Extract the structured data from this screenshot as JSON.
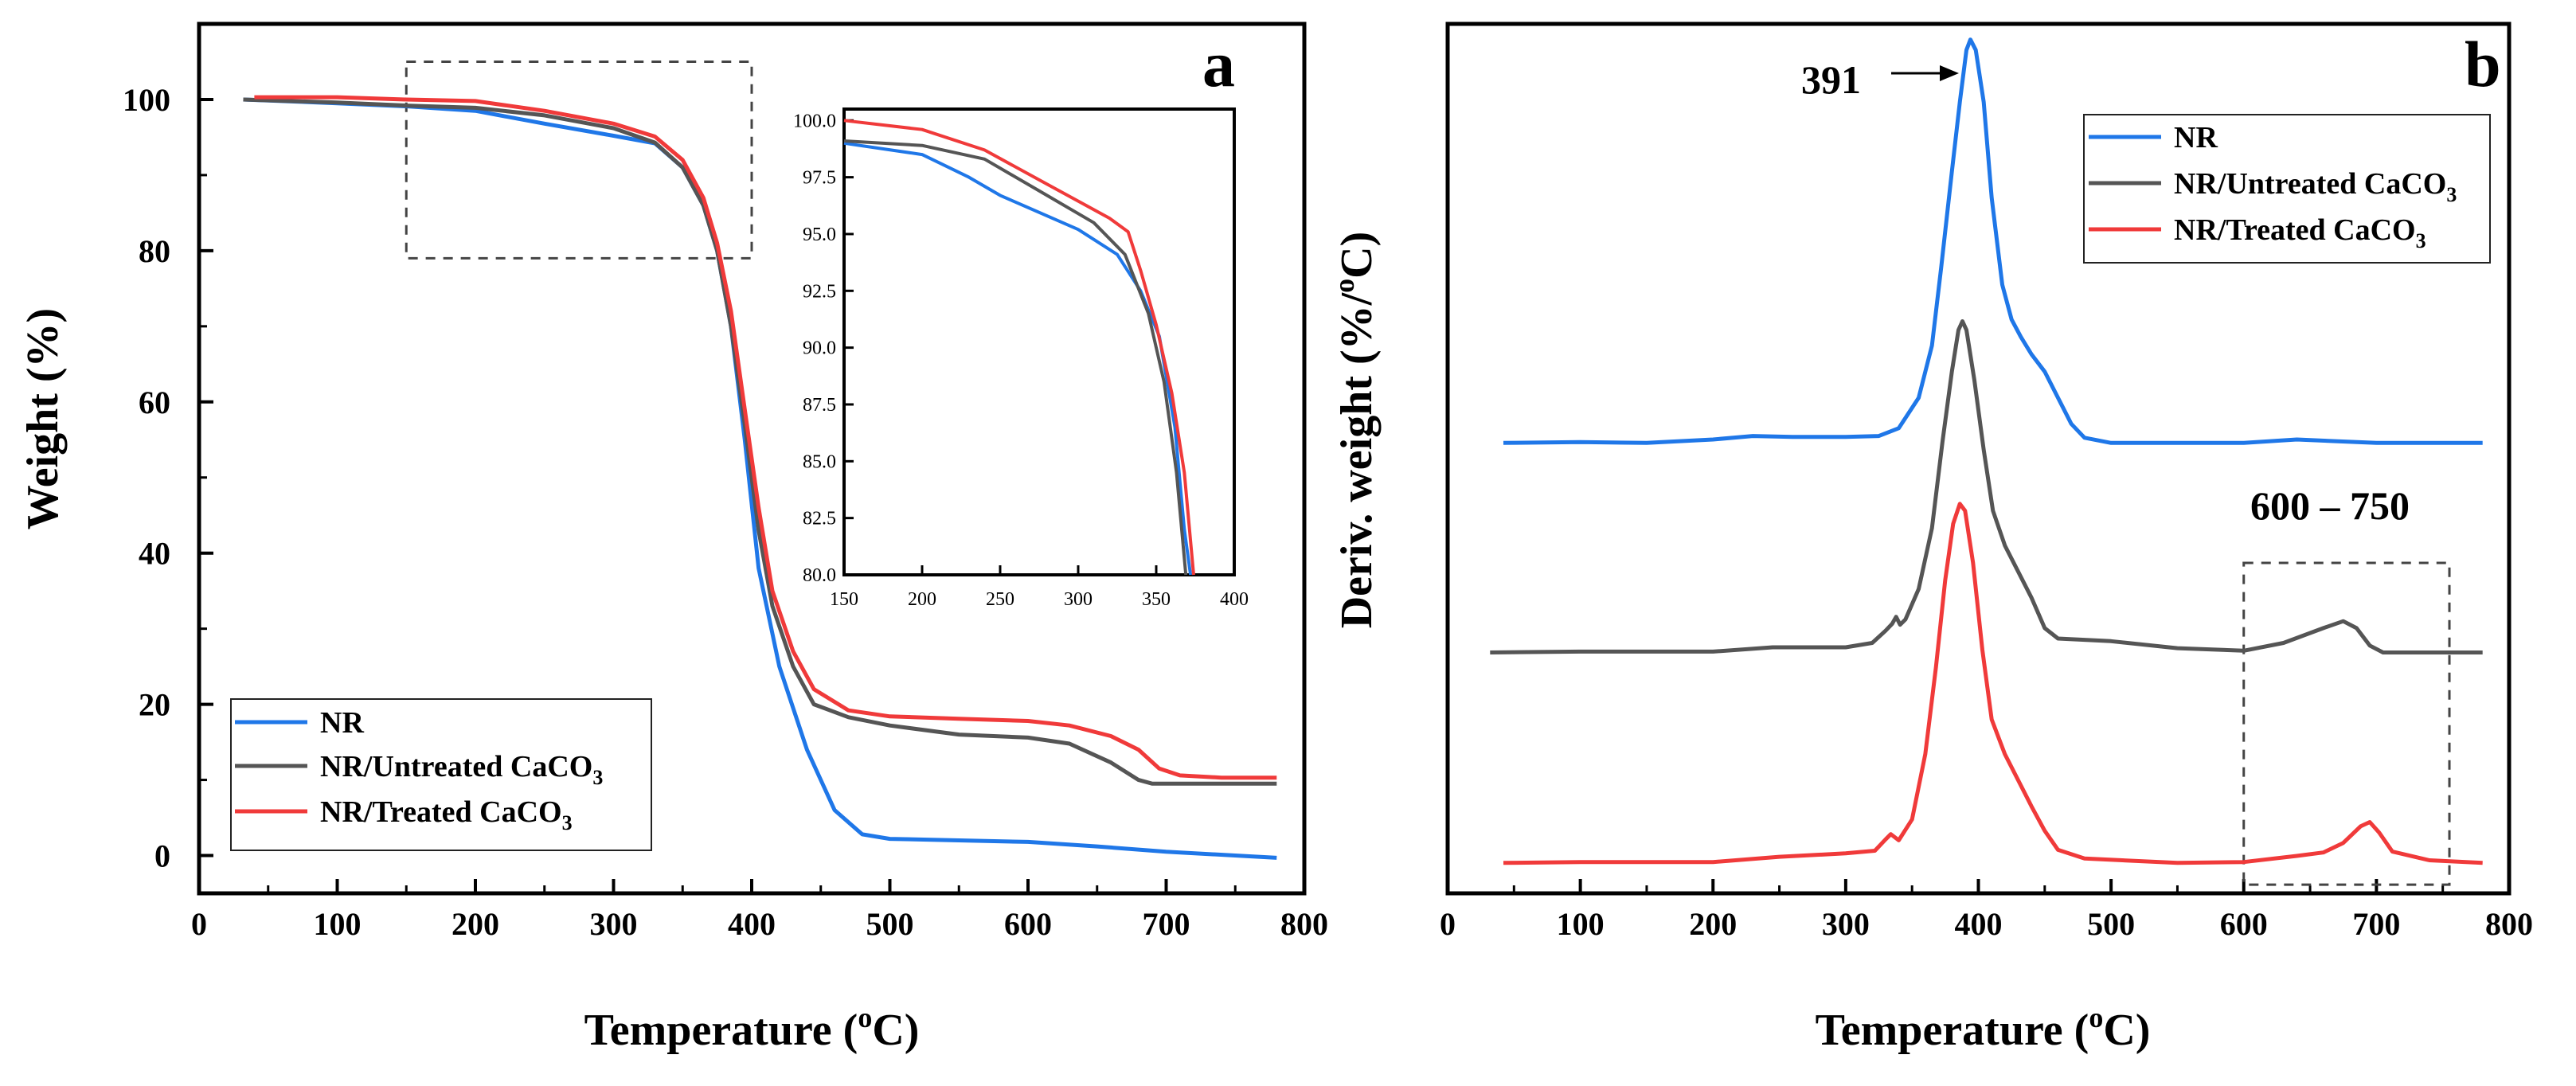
{
  "chart_data": [
    {
      "panel": "a",
      "type": "line",
      "xlabel": "Temperature (oC)",
      "xlabel_main": "Temperature (",
      "xlabel_sup": "o",
      "xlabel_end": "C)",
      "ylabel": "Weight (%)",
      "xlim": [
        0,
        800
      ],
      "ylim": [
        -5,
        110
      ],
      "xticks": [
        0,
        100,
        200,
        300,
        400,
        500,
        600,
        700,
        800
      ],
      "yticks": [
        0,
        20,
        40,
        60,
        80,
        100
      ],
      "legend": [
        "NR",
        "NR/Untreated CaCO3",
        "NR/Treated CaCO3"
      ],
      "legend_position": "bottom-left",
      "zoom_box": {
        "x": [
          150,
          400
        ],
        "y": [
          79,
          105
        ]
      },
      "series": [
        {
          "name": "NR",
          "color": "#1f77e8",
          "points": [
            [
              32,
              100
            ],
            [
              100,
              99.5
            ],
            [
              150,
              99.1
            ],
            [
              200,
              98.5
            ],
            [
              250,
              96.8
            ],
            [
              300,
              95.2
            ],
            [
              330,
              94.2
            ],
            [
              350,
              91
            ],
            [
              365,
              86
            ],
            [
              375,
              80
            ],
            [
              385,
              70
            ],
            [
              395,
              55
            ],
            [
              405,
              38
            ],
            [
              420,
              25
            ],
            [
              440,
              14
            ],
            [
              460,
              6
            ],
            [
              480,
              2.8
            ],
            [
              500,
              2.2
            ],
            [
              550,
              2.0
            ],
            [
              600,
              1.8
            ],
            [
              650,
              1.2
            ],
            [
              700,
              0.5
            ],
            [
              750,
              0
            ],
            [
              780,
              -0.3
            ]
          ]
        },
        {
          "name": "NR/Untreated CaCO3",
          "color": "#555555",
          "points": [
            [
              32,
              100
            ],
            [
              100,
              99.6
            ],
            [
              150,
              99.2
            ],
            [
              200,
              98.9
            ],
            [
              250,
              97.9
            ],
            [
              300,
              96.2
            ],
            [
              330,
              94.3
            ],
            [
              350,
              91
            ],
            [
              365,
              86
            ],
            [
              375,
              80
            ],
            [
              385,
              70
            ],
            [
              395,
              57
            ],
            [
              405,
              43
            ],
            [
              415,
              33
            ],
            [
              430,
              25
            ],
            [
              445,
              20
            ],
            [
              470,
              18.3
            ],
            [
              500,
              17.2
            ],
            [
              550,
              16
            ],
            [
              600,
              15.6
            ],
            [
              630,
              14.8
            ],
            [
              660,
              12.3
            ],
            [
              680,
              10
            ],
            [
              690,
              9.5
            ],
            [
              720,
              9.5
            ],
            [
              780,
              9.5
            ]
          ]
        },
        {
          "name": "NR/Treated CaCO3",
          "color": "#f03a3a",
          "points": [
            [
              40,
              100.3
            ],
            [
              100,
              100.3
            ],
            [
              150,
              100
            ],
            [
              200,
              99.8
            ],
            [
              250,
              98.5
            ],
            [
              300,
              96.8
            ],
            [
              330,
              95.1
            ],
            [
              350,
              92
            ],
            [
              365,
              87
            ],
            [
              375,
              81
            ],
            [
              385,
              72
            ],
            [
              395,
              59
            ],
            [
              405,
              46
            ],
            [
              415,
              35
            ],
            [
              430,
              27
            ],
            [
              445,
              22
            ],
            [
              470,
              19.2
            ],
            [
              500,
              18.4
            ],
            [
              550,
              18.1
            ],
            [
              600,
              17.8
            ],
            [
              630,
              17.2
            ],
            [
              660,
              15.8
            ],
            [
              680,
              14
            ],
            [
              695,
              11.5
            ],
            [
              710,
              10.6
            ],
            [
              740,
              10.3
            ],
            [
              780,
              10.3
            ]
          ]
        }
      ],
      "inset": {
        "xlim": [
          150,
          400
        ],
        "ylim": [
          80,
          100.5
        ],
        "xticks": [
          150,
          200,
          250,
          300,
          350,
          400
        ],
        "yticks": [
          "80.0",
          "82.5",
          "85.0",
          "87.5",
          "90.0",
          "92.5",
          "95.0",
          "97.5",
          "100.0"
        ],
        "series": [
          {
            "name": "NR",
            "points": [
              [
                150,
                99
              ],
              [
                200,
                98.5
              ],
              [
                230,
                97.5
              ],
              [
                250,
                96.7
              ],
              [
                300,
                95.2
              ],
              [
                325,
                94.1
              ],
              [
                340,
                92.5
              ],
              [
                352,
                90.5
              ],
              [
                362,
                86.5
              ],
              [
                368,
                82
              ],
              [
                372,
                80
              ]
            ]
          },
          {
            "name": "NR/Untreated CaCO3",
            "points": [
              [
                150,
                99.1
              ],
              [
                200,
                98.9
              ],
              [
                240,
                98.3
              ],
              [
                280,
                96.7
              ],
              [
                310,
                95.5
              ],
              [
                330,
                94.1
              ],
              [
                345,
                91.5
              ],
              [
                355,
                88.5
              ],
              [
                363,
                84.5
              ],
              [
                369,
                80
              ]
            ]
          },
          {
            "name": "NR/Treated CaCO3",
            "points": [
              [
                150,
                100
              ],
              [
                200,
                99.6
              ],
              [
                240,
                98.7
              ],
              [
                280,
                97.2
              ],
              [
                320,
                95.7
              ],
              [
                332,
                95.1
              ],
              [
                340,
                93.4
              ],
              [
                350,
                91
              ],
              [
                360,
                88
              ],
              [
                368,
                84.5
              ],
              [
                374,
                80
              ]
            ]
          }
        ]
      }
    },
    {
      "panel": "b",
      "type": "line",
      "xlabel": "Temperature (oC)",
      "xlabel_main": "Temperature (",
      "xlabel_sup": "o",
      "xlabel_end": "C)",
      "ylabel": "Deriv. weight (%/oC)",
      "ylabel_main": "Deriv. weight (%/",
      "ylabel_sup": "o",
      "ylabel_end": "C)",
      "xlim": [
        0,
        800
      ],
      "ylim": [
        0,
        100
      ],
      "xticks": [
        0,
        100,
        200,
        300,
        400,
        500,
        600,
        700,
        800
      ],
      "legend": [
        "NR",
        "NR/Untreated CaCO3",
        "NR/Treated CaCO3"
      ],
      "legend_position": "top-right",
      "annotations": {
        "peak_label": "391",
        "range_label": "600 – 750",
        "range_box": {
          "x": [
            600,
            755
          ]
        }
      },
      "series": [
        {
          "name": "NR",
          "color": "#1f77e8",
          "points": [
            [
              42,
              51.8
            ],
            [
              100,
              51.9
            ],
            [
              150,
              51.8
            ],
            [
              200,
              52.2
            ],
            [
              230,
              52.6
            ],
            [
              260,
              52.5
            ],
            [
              300,
              52.5
            ],
            [
              325,
              52.6
            ],
            [
              340,
              53.5
            ],
            [
              355,
              57
            ],
            [
              365,
              63
            ],
            [
              372,
              72
            ],
            [
              380,
              83
            ],
            [
              386,
              91
            ],
            [
              391,
              97
            ],
            [
              394,
              98.2
            ],
            [
              398,
              97
            ],
            [
              404,
              91
            ],
            [
              410,
              80
            ],
            [
              418,
              70
            ],
            [
              425,
              66
            ],
            [
              432,
              64
            ],
            [
              440,
              62
            ],
            [
              450,
              60
            ],
            [
              460,
              57
            ],
            [
              470,
              54
            ],
            [
              480,
              52.4
            ],
            [
              500,
              51.8
            ],
            [
              600,
              51.8
            ],
            [
              640,
              52.2
            ],
            [
              700,
              51.8
            ],
            [
              780,
              51.8
            ]
          ]
        },
        {
          "name": "NR/Untreated CaCO3",
          "color": "#555555",
          "points": [
            [
              32,
              27.7
            ],
            [
              100,
              27.8
            ],
            [
              200,
              27.8
            ],
            [
              245,
              28.3
            ],
            [
              300,
              28.3
            ],
            [
              320,
              28.8
            ],
            [
              330,
              30.2
            ],
            [
              335,
              31
            ],
            [
              338,
              31.8
            ],
            [
              341,
              30.9
            ],
            [
              345,
              31.5
            ],
            [
              355,
              35
            ],
            [
              365,
              42
            ],
            [
              373,
              52
            ],
            [
              380,
              60
            ],
            [
              385,
              64.8
            ],
            [
              388,
              65.8
            ],
            [
              391,
              64.8
            ],
            [
              397,
              59
            ],
            [
              404,
              51
            ],
            [
              411,
              44
            ],
            [
              420,
              40
            ],
            [
              430,
              37
            ],
            [
              440,
              34
            ],
            [
              450,
              30.5
            ],
            [
              460,
              29.3
            ],
            [
              500,
              29
            ],
            [
              550,
              28.2
            ],
            [
              600,
              27.9
            ],
            [
              630,
              28.8
            ],
            [
              660,
              30.5
            ],
            [
              675,
              31.3
            ],
            [
              685,
              30.5
            ],
            [
              695,
              28.5
            ],
            [
              705,
              27.7
            ],
            [
              780,
              27.7
            ]
          ]
        },
        {
          "name": "NR/Treated CaCO3",
          "color": "#f03a3a",
          "points": [
            [
              42,
              3.5
            ],
            [
              100,
              3.6
            ],
            [
              200,
              3.6
            ],
            [
              250,
              4.2
            ],
            [
              300,
              4.6
            ],
            [
              322,
              4.9
            ],
            [
              330,
              6.2
            ],
            [
              334,
              6.8
            ],
            [
              340,
              6.1
            ],
            [
              350,
              8.5
            ],
            [
              360,
              16
            ],
            [
              368,
              26
            ],
            [
              375,
              36
            ],
            [
              381,
              42.5
            ],
            [
              386,
              44.8
            ],
            [
              390,
              44
            ],
            [
              396,
              38
            ],
            [
              403,
              28
            ],
            [
              410,
              20
            ],
            [
              420,
              16
            ],
            [
              430,
              13
            ],
            [
              440,
              10
            ],
            [
              450,
              7.2
            ],
            [
              460,
              5
            ],
            [
              480,
              4
            ],
            [
              550,
              3.5
            ],
            [
              600,
              3.6
            ],
            [
              640,
              4.3
            ],
            [
              660,
              4.7
            ],
            [
              675,
              5.8
            ],
            [
              688,
              7.7
            ],
            [
              695,
              8.2
            ],
            [
              702,
              7
            ],
            [
              712,
              4.8
            ],
            [
              740,
              3.8
            ],
            [
              780,
              3.5
            ]
          ]
        }
      ]
    }
  ],
  "panel_a_letter": "a",
  "panel_b_letter": "b",
  "legend": {
    "nr": "NR",
    "untreated_prefix": "NR/Untreated CaCO",
    "treated_prefix": "NR/Treated CaCO",
    "subscript": "3"
  },
  "colors": {
    "nr": "#1f77e8",
    "untreated": "#555555",
    "treated": "#f03a3a",
    "axis": "#000000"
  }
}
